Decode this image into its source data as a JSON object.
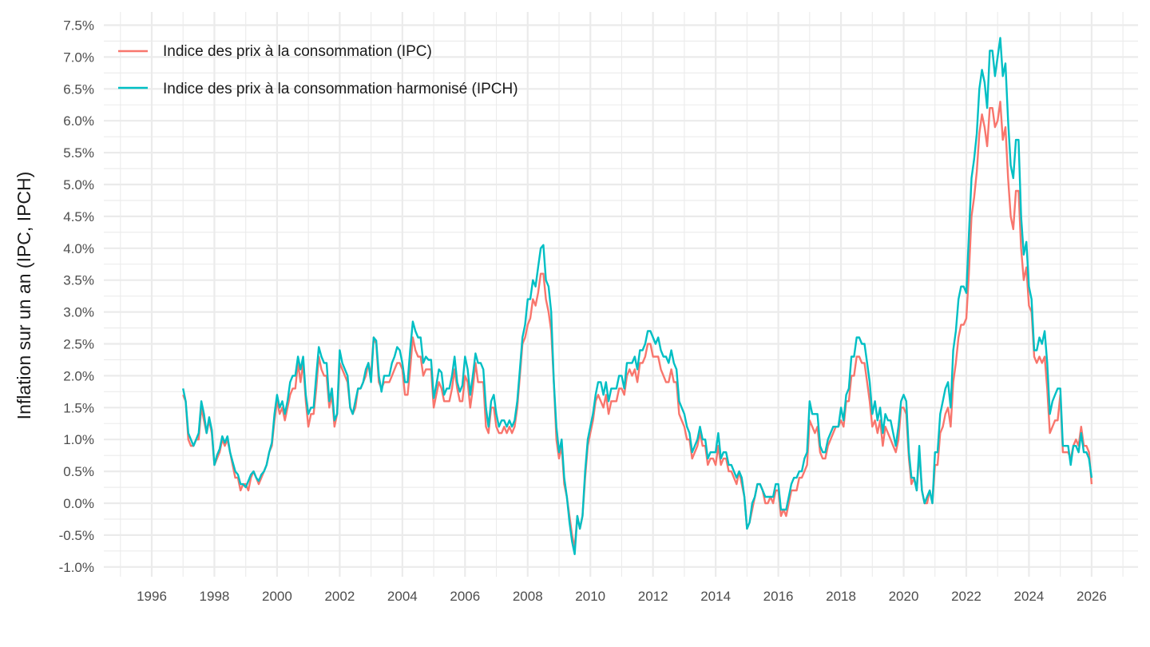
{
  "chart_data": {
    "type": "line",
    "title": "",
    "xlabel": "",
    "ylabel": "Inflation sur un an (IPC, IPCH)",
    "xlim": [
      1995,
      2027
    ],
    "ylim": [
      -1.0,
      7.5
    ],
    "x_ticks": [
      "1996",
      "1998",
      "2000",
      "2002",
      "2004",
      "2006",
      "2008",
      "2010",
      "2012",
      "2014",
      "2016",
      "2018",
      "2020",
      "2022",
      "2024",
      "2026"
    ],
    "y_ticks": [
      "-1.0%",
      "-0.5%",
      "0.0%",
      "0.5%",
      "1.0%",
      "1.5%",
      "2.0%",
      "2.5%",
      "3.0%",
      "3.5%",
      "4.0%",
      "4.5%",
      "5.0%",
      "5.5%",
      "6.0%",
      "6.5%",
      "7.0%",
      "7.5%"
    ],
    "grid": true,
    "legend_position": "top-left",
    "frequency": "monthly",
    "series": [
      {
        "name": "Indice des prix à la consommation (IPC)",
        "color": "#F8766D",
        "values_by_year": {
          "1997": [
            1.7,
            1.6,
            1.0,
            0.9,
            0.9,
            1.0,
            1.0,
            1.5,
            1.3,
            1.1,
            1.3,
            1.1
          ],
          "1998": [
            0.6,
            0.7,
            0.8,
            1.0,
            0.9,
            1.0,
            0.8,
            0.6,
            0.4,
            0.4,
            0.2,
            0.3
          ],
          "1999": [
            0.3,
            0.2,
            0.4,
            0.5,
            0.4,
            0.3,
            0.4,
            0.5,
            0.6,
            0.8,
            0.9,
            1.3
          ],
          "2000": [
            1.6,
            1.4,
            1.5,
            1.3,
            1.5,
            1.7,
            1.8,
            1.8,
            2.2,
            1.9,
            2.2,
            1.6
          ],
          "2001": [
            1.2,
            1.4,
            1.4,
            1.8,
            2.3,
            2.1,
            2.0,
            2.0,
            1.5,
            1.7,
            1.2,
            1.4
          ],
          "2002": [
            2.2,
            2.1,
            2.0,
            1.9,
            1.5,
            1.4,
            1.5,
            1.8,
            1.8,
            1.9,
            2.0,
            2.2
          ],
          "2003": [
            2.0,
            2.6,
            2.5,
            1.9,
            1.8,
            1.9,
            1.9,
            1.9,
            2.0,
            2.1,
            2.2,
            2.2
          ],
          "2004": [
            2.1,
            1.7,
            1.7,
            2.1,
            2.6,
            2.4,
            2.3,
            2.3,
            2.0,
            2.1,
            2.1,
            2.1
          ],
          "2005": [
            1.5,
            1.7,
            1.9,
            1.8,
            1.6,
            1.6,
            1.6,
            1.8,
            2.1,
            1.8,
            1.6,
            1.6
          ],
          "2006": [
            2.0,
            1.9,
            1.5,
            1.8,
            2.2,
            1.9,
            1.9,
            1.9,
            1.2,
            1.1,
            1.5,
            1.5
          ],
          "2007": [
            1.2,
            1.1,
            1.1,
            1.2,
            1.1,
            1.2,
            1.1,
            1.2,
            1.5,
            2.0,
            2.5,
            2.6
          ],
          "2008": [
            2.8,
            2.9,
            3.2,
            3.1,
            3.3,
            3.6,
            3.6,
            3.2,
            3.0,
            2.7,
            1.9,
            1.0
          ],
          "2009": [
            0.7,
            0.9,
            0.3,
            0.1,
            -0.2,
            -0.5,
            -0.7,
            -0.2,
            -0.4,
            -0.2,
            0.4,
            0.9
          ],
          "2010": [
            1.1,
            1.3,
            1.6,
            1.7,
            1.6,
            1.5,
            1.7,
            1.4,
            1.6,
            1.6,
            1.6,
            1.8
          ],
          "2011": [
            1.8,
            1.7,
            2.0,
            2.1,
            2.0,
            2.1,
            1.9,
            2.2,
            2.2,
            2.3,
            2.5,
            2.5
          ],
          "2012": [
            2.3,
            2.3,
            2.3,
            2.1,
            2.0,
            1.9,
            1.9,
            2.1,
            1.9,
            1.9,
            1.4,
            1.3
          ],
          "2013": [
            1.2,
            1.0,
            1.0,
            0.7,
            0.8,
            0.9,
            1.1,
            0.9,
            0.9,
            0.6,
            0.7,
            0.7
          ],
          "2014": [
            0.6,
            0.9,
            0.6,
            0.7,
            0.7,
            0.5,
            0.5,
            0.4,
            0.3,
            0.5,
            0.3,
            0.1
          ],
          "2015": [
            -0.4,
            -0.3,
            -0.1,
            0.1,
            0.3,
            0.3,
            0.2,
            0.0,
            0.0,
            0.1,
            0.0,
            0.2
          ],
          "2016": [
            0.2,
            -0.2,
            -0.1,
            -0.2,
            0.0,
            0.2,
            0.2,
            0.2,
            0.4,
            0.4,
            0.5,
            0.6
          ],
          "2017": [
            1.3,
            1.2,
            1.1,
            1.2,
            0.8,
            0.7,
            0.7,
            0.9,
            1.0,
            1.1,
            1.2,
            1.2
          ],
          "2018": [
            1.3,
            1.2,
            1.6,
            1.6,
            2.0,
            2.0,
            2.3,
            2.3,
            2.2,
            2.2,
            1.9,
            1.6
          ],
          "2019": [
            1.2,
            1.3,
            1.1,
            1.3,
            0.9,
            1.2,
            1.1,
            1.0,
            0.9,
            0.8,
            1.0,
            1.5
          ],
          "2020": [
            1.5,
            1.4,
            0.7,
            0.3,
            0.4,
            0.2,
            0.8,
            0.2,
            0.0,
            0.0,
            0.2,
            0.0
          ],
          "2021": [
            0.6,
            0.6,
            1.1,
            1.2,
            1.4,
            1.5,
            1.2,
            1.9,
            2.2,
            2.6,
            2.8,
            2.8
          ],
          "2022": [
            2.9,
            3.6,
            4.5,
            4.8,
            5.2,
            5.8,
            6.1,
            5.9,
            5.6,
            6.2,
            6.2,
            5.9
          ],
          "2023": [
            6.0,
            6.3,
            5.7,
            5.9,
            5.1,
            4.5,
            4.3,
            4.9,
            4.9,
            4.0,
            3.5,
            3.7
          ],
          "2024": [
            3.1,
            3.0,
            2.3,
            2.2,
            2.3,
            2.2,
            2.3,
            1.8,
            1.1,
            1.2,
            1.3,
            1.3
          ],
          "2025": [
            1.7,
            0.8,
            0.8,
            0.8,
            0.7,
            0.9,
            1.0,
            0.9,
            1.2,
            0.9,
            0.9,
            0.8
          ],
          "2026": [
            0.3
          ]
        }
      },
      {
        "name": "Indice des prix à la consommation harmonisé (IPCH)",
        "color": "#00BFC4",
        "values_by_year": {
          "1997": [
            1.8,
            1.6,
            1.1,
            1.0,
            0.9,
            1.0,
            1.1,
            1.6,
            1.4,
            1.1,
            1.35,
            1.15
          ],
          "1998": [
            0.6,
            0.75,
            0.85,
            1.05,
            0.95,
            1.05,
            0.8,
            0.65,
            0.5,
            0.45,
            0.3,
            0.3
          ],
          "1999": [
            0.25,
            0.35,
            0.45,
            0.5,
            0.4,
            0.35,
            0.45,
            0.5,
            0.6,
            0.8,
            0.95,
            1.4
          ],
          "2000": [
            1.7,
            1.5,
            1.6,
            1.4,
            1.6,
            1.9,
            2.0,
            2.0,
            2.3,
            2.1,
            2.3,
            1.7
          ],
          "2001": [
            1.4,
            1.5,
            1.5,
            2.0,
            2.45,
            2.3,
            2.2,
            2.2,
            1.6,
            1.8,
            1.3,
            1.4
          ],
          "2002": [
            2.4,
            2.2,
            2.1,
            2.0,
            1.5,
            1.4,
            1.6,
            1.8,
            1.8,
            1.9,
            2.1,
            2.2
          ],
          "2003": [
            1.9,
            2.6,
            2.55,
            2.0,
            1.75,
            2.0,
            2.0,
            2.0,
            2.2,
            2.3,
            2.45,
            2.4
          ],
          "2004": [
            2.2,
            1.9,
            1.9,
            2.4,
            2.85,
            2.7,
            2.6,
            2.6,
            2.2,
            2.3,
            2.25,
            2.25
          ],
          "2005": [
            1.65,
            1.85,
            2.1,
            2.05,
            1.7,
            1.8,
            1.8,
            2.0,
            2.3,
            1.9,
            1.75,
            1.85
          ],
          "2006": [
            2.3,
            2.1,
            1.7,
            2.0,
            2.35,
            2.2,
            2.2,
            2.1,
            1.5,
            1.2,
            1.6,
            1.7
          ],
          "2007": [
            1.4,
            1.2,
            1.3,
            1.3,
            1.2,
            1.3,
            1.2,
            1.3,
            1.6,
            2.1,
            2.6,
            2.8
          ],
          "2008": [
            3.2,
            3.2,
            3.5,
            3.4,
            3.7,
            4.0,
            4.05,
            3.5,
            3.4,
            3.0,
            1.9,
            1.2
          ],
          "2009": [
            0.8,
            1.0,
            0.4,
            0.1,
            -0.3,
            -0.6,
            -0.8,
            -0.2,
            -0.4,
            -0.2,
            0.5,
            1.0
          ],
          "2010": [
            1.2,
            1.4,
            1.7,
            1.9,
            1.9,
            1.7,
            1.9,
            1.6,
            1.8,
            1.8,
            1.8,
            2.0
          ],
          "2011": [
            2.0,
            1.8,
            2.2,
            2.2,
            2.2,
            2.3,
            2.1,
            2.4,
            2.4,
            2.5,
            2.7,
            2.7
          ],
          "2012": [
            2.6,
            2.5,
            2.6,
            2.4,
            2.3,
            2.3,
            2.2,
            2.4,
            2.2,
            2.1,
            1.6,
            1.5
          ],
          "2013": [
            1.4,
            1.2,
            1.1,
            0.8,
            0.9,
            1.0,
            1.2,
            1.0,
            1.0,
            0.7,
            0.8,
            0.8
          ],
          "2014": [
            0.8,
            1.1,
            0.7,
            0.8,
            0.8,
            0.6,
            0.6,
            0.5,
            0.4,
            0.5,
            0.4,
            0.1
          ],
          "2015": [
            -0.4,
            -0.3,
            0.0,
            0.1,
            0.3,
            0.3,
            0.2,
            0.1,
            0.1,
            0.1,
            0.1,
            0.3
          ],
          "2016": [
            0.3,
            -0.1,
            -0.1,
            -0.1,
            0.1,
            0.3,
            0.4,
            0.4,
            0.5,
            0.5,
            0.7,
            0.8
          ],
          "2017": [
            1.6,
            1.4,
            1.4,
            1.4,
            0.9,
            0.8,
            0.8,
            1.0,
            1.1,
            1.2,
            1.2,
            1.2
          ],
          "2018": [
            1.5,
            1.3,
            1.7,
            1.8,
            2.3,
            2.3,
            2.6,
            2.6,
            2.5,
            2.5,
            2.2,
            1.9
          ],
          "2019": [
            1.4,
            1.6,
            1.3,
            1.5,
            1.1,
            1.4,
            1.3,
            1.3,
            1.1,
            0.9,
            1.2,
            1.6
          ],
          "2020": [
            1.7,
            1.6,
            0.8,
            0.4,
            0.4,
            0.2,
            0.9,
            0.2,
            0.0,
            0.1,
            0.2,
            0.0
          ],
          "2021": [
            0.8,
            0.8,
            1.4,
            1.6,
            1.8,
            1.9,
            1.5,
            2.4,
            2.7,
            3.2,
            3.4,
            3.4
          ],
          "2022": [
            3.3,
            4.2,
            5.1,
            5.4,
            5.8,
            6.5,
            6.8,
            6.6,
            6.2,
            7.1,
            7.1,
            6.7
          ],
          "2023": [
            7.0,
            7.3,
            6.7,
            6.9,
            6.0,
            5.3,
            5.1,
            5.7,
            5.7,
            4.5,
            3.9,
            4.1
          ],
          "2024": [
            3.4,
            3.2,
            2.4,
            2.4,
            2.6,
            2.5,
            2.7,
            2.2,
            1.4,
            1.6,
            1.7,
            1.8
          ],
          "2025": [
            1.8,
            0.9,
            0.9,
            0.9,
            0.6,
            0.9,
            0.9,
            0.8,
            1.1,
            0.8,
            0.8,
            0.7
          ],
          "2026": [
            0.4
          ]
        }
      }
    ]
  }
}
